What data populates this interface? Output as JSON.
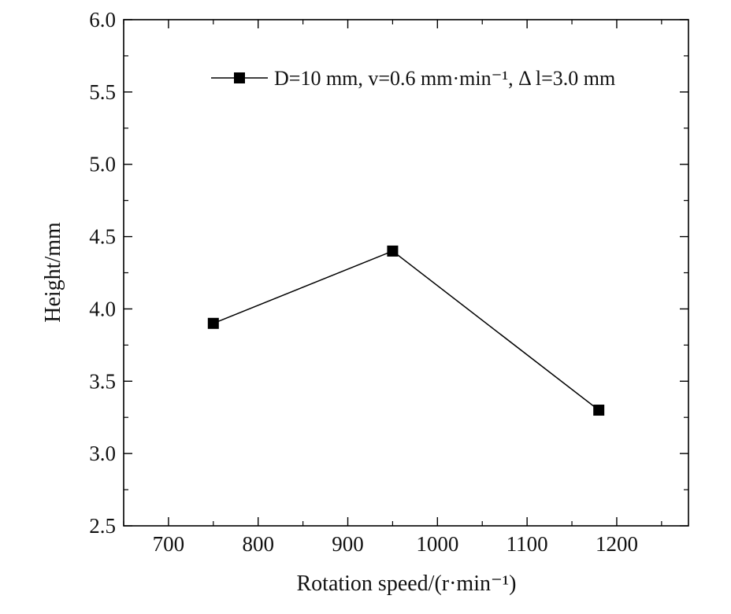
{
  "chart_data": {
    "type": "line",
    "xlabel": "Rotation speed/(r·min⁻¹)",
    "ylabel": "Height/mm",
    "xlim": [
      650,
      1280
    ],
    "ylim": [
      2.5,
      6.0
    ],
    "x_ticks": [
      700,
      800,
      900,
      1000,
      1100,
      1200
    ],
    "x_tick_labels": [
      "700",
      "800",
      "900",
      "1000",
      "1100",
      "1200"
    ],
    "y_ticks": [
      2.5,
      3.0,
      3.5,
      4.0,
      4.5,
      5.0,
      5.5,
      6.0
    ],
    "y_tick_labels": [
      "2.5",
      "3.0",
      "3.5",
      "4.0",
      "4.5",
      "5.0",
      "5.5",
      "6.0"
    ],
    "grid": false,
    "legend_position": "top-right",
    "series": [
      {
        "name": "D=10 mm, v=0.6 mm·min⁻¹, Δ l=3.0 mm",
        "marker": "square",
        "color": "#000000",
        "x": [
          750,
          950,
          1180
        ],
        "y": [
          3.9,
          4.4,
          3.3
        ]
      }
    ]
  }
}
